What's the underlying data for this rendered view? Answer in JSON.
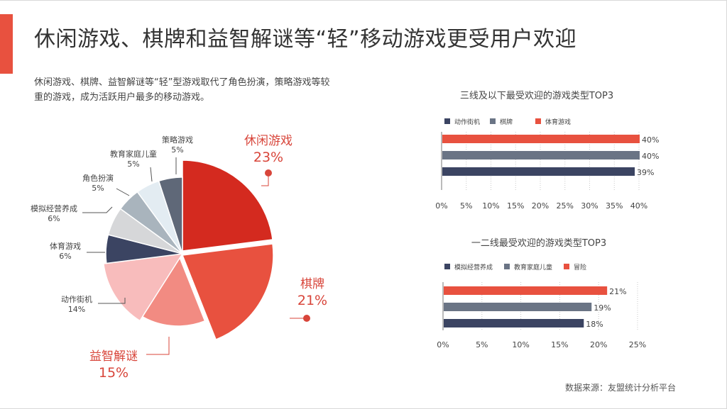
{
  "header": {
    "title": "休闲游戏、棋牌和益智解谜等“轻”移动游戏更受用户欢迎",
    "subtitle": "休闲游戏、棋牌、益智解谜等“轻”型游戏取代了角色扮演，策略游戏等较重的游戏，成为活跃用户最多的移动游戏。"
  },
  "footer": {
    "source": "数据来源：友盟统计分析平台"
  },
  "colors": {
    "accent": "#e8513f",
    "dark_navy": "#3b4462",
    "slate": "#6a7485",
    "red": "#e8513f"
  },
  "chart_data": [
    {
      "type": "pie",
      "slices": [
        {
          "label": "休闲游戏",
          "value": 23,
          "value_label": "23%",
          "color": "#d42a1f"
        },
        {
          "label": "棋牌",
          "value": 21,
          "value_label": "21%",
          "color": "#e8513f"
        },
        {
          "label": "益智解谜",
          "value": 15,
          "value_label": "15%",
          "color": "#f28b82"
        },
        {
          "label": "动作街机",
          "value": 14,
          "value_label": "14%",
          "color": "#f8bcbc"
        },
        {
          "label": "体育游戏",
          "value": 6,
          "value_label": "6%",
          "color": "#3b4462"
        },
        {
          "label": "模拟经营养成",
          "value": 6,
          "value_label": "6%",
          "color": "#d6d7d9"
        },
        {
          "label": "角色扮演",
          "value": 5,
          "value_label": "5%",
          "color": "#a9b4bd"
        },
        {
          "label": "教育家庭儿童",
          "value": 5,
          "value_label": "5%",
          "color": "#e3ecf2"
        },
        {
          "label": "策略游戏",
          "value": 5,
          "value_label": "5%",
          "color": "#5f6878"
        }
      ]
    },
    {
      "type": "bar",
      "orientation": "horizontal",
      "title": "三线及以下最受欢迎的游戏类型TOP3",
      "legend": [
        {
          "name": "动作街机",
          "color": "#3b4462"
        },
        {
          "name": "棋牌",
          "color": "#6a7485"
        },
        {
          "name": "体育游戏",
          "color": "#e8513f"
        }
      ],
      "bars": [
        {
          "series": "体育游戏",
          "value": 40,
          "label": "40%",
          "color": "#e8513f"
        },
        {
          "series": "棋牌",
          "value": 40,
          "label": "40%",
          "color": "#6a7485"
        },
        {
          "series": "动作街机",
          "value": 39,
          "label": "39%",
          "color": "#3b4462"
        }
      ],
      "xlim": [
        0,
        40
      ],
      "xticks": [
        0,
        5,
        10,
        15,
        20,
        25,
        30,
        35,
        40
      ],
      "xtick_labels": [
        "0%",
        "5%",
        "10%",
        "15%",
        "20%",
        "25%",
        "30%",
        "35%",
        "40%"
      ]
    },
    {
      "type": "bar",
      "orientation": "horizontal",
      "title": "一二线最受欢迎的游戏类型TOP3",
      "legend": [
        {
          "name": "模拟经营养成",
          "color": "#3b4462"
        },
        {
          "name": "教育家庭儿童",
          "color": "#6a7485"
        },
        {
          "name": "冒险",
          "color": "#e8513f"
        }
      ],
      "bars": [
        {
          "series": "冒险",
          "value": 21,
          "label": "21%",
          "color": "#e8513f"
        },
        {
          "series": "教育家庭儿童",
          "value": 19,
          "label": "19%",
          "color": "#6a7485"
        },
        {
          "series": "模拟经营养成",
          "value": 18,
          "label": "18%",
          "color": "#3b4462"
        }
      ],
      "xlim": [
        0,
        25
      ],
      "xticks": [
        0,
        5,
        10,
        15,
        20,
        25
      ],
      "xtick_labels": [
        "0%",
        "5%",
        "10%",
        "15%",
        "20%",
        "25%"
      ]
    }
  ]
}
